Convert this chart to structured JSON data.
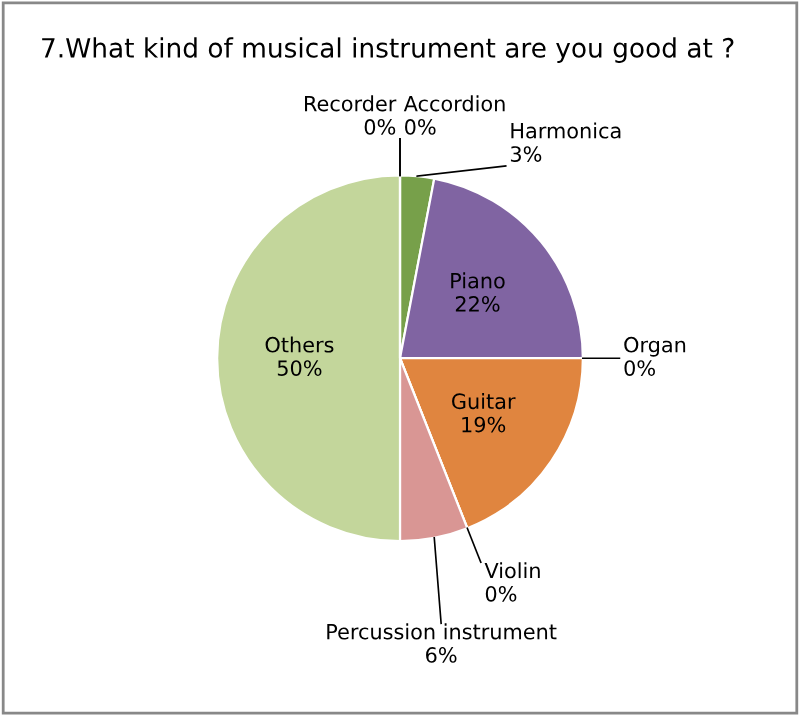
{
  "chart_data": {
    "type": "pie",
    "title": "7.What kind of musical instrument are you good at ?",
    "categories": [
      "Accordion",
      "Harmonica",
      "Piano",
      "Organ",
      "Guitar",
      "Violin",
      "Percussion instrument",
      "Others",
      "Recorder"
    ],
    "values": [
      0,
      3,
      22,
      0,
      19,
      0,
      6,
      50,
      0
    ],
    "value_labels": [
      "0%",
      "3%",
      "22%",
      "0%",
      "19%",
      "0%",
      "6%",
      "50%",
      "0%"
    ],
    "colors": [
      "#4f81bd",
      "#77a04a",
      "#8064a2",
      "#4bacc6",
      "#e0853f",
      "#f79646",
      "#d99694",
      "#c3d69b",
      "#c0504d"
    ]
  }
}
